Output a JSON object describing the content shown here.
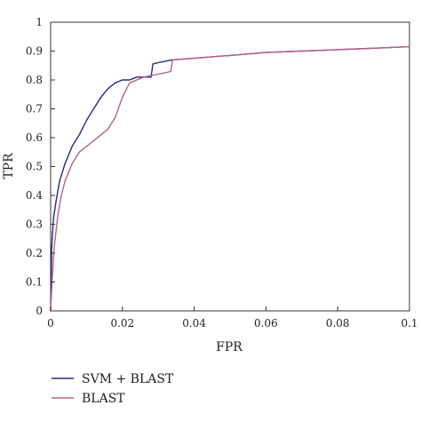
{
  "chart_data": {
    "type": "line",
    "xlabel": "FPR",
    "ylabel": "TPR",
    "xlim": [
      0,
      0.1
    ],
    "ylim": [
      0,
      1
    ],
    "xticks": [
      "0",
      "0.02",
      "0.04",
      "0.06",
      "0.08",
      "0.1"
    ],
    "yticks": [
      "0",
      "0.1",
      "0.2",
      "0.3",
      "0.4",
      "0.5",
      "0.6",
      "0.7",
      "0.8",
      "0.9",
      "1"
    ],
    "grid": false,
    "legend_position": "below",
    "series": [
      {
        "name": "SVM + BLAST",
        "color": "#2a2a7a",
        "x": [
          0,
          0.0003,
          0.0008,
          0.0015,
          0.0025,
          0.004,
          0.006,
          0.008,
          0.01,
          0.012,
          0.014,
          0.016,
          0.018,
          0.02,
          0.022,
          0.024,
          0.026,
          0.028,
          0.0285,
          0.03,
          0.032,
          0.034,
          0.04,
          0.05,
          0.06,
          0.07,
          0.08,
          0.09,
          0.1
        ],
        "y": [
          0,
          0.22,
          0.32,
          0.38,
          0.45,
          0.51,
          0.57,
          0.61,
          0.66,
          0.7,
          0.74,
          0.77,
          0.79,
          0.8,
          0.8,
          0.81,
          0.81,
          0.81,
          0.855,
          0.86,
          0.865,
          0.87,
          0.875,
          0.885,
          0.895,
          0.9,
          0.905,
          0.91,
          0.915
        ]
      },
      {
        "name": "BLAST",
        "color": "#b5648a",
        "x": [
          0,
          0.0005,
          0.001,
          0.002,
          0.003,
          0.004,
          0.006,
          0.008,
          0.01,
          0.012,
          0.014,
          0.016,
          0.018,
          0.02,
          0.022,
          0.024,
          0.026,
          0.028,
          0.03,
          0.032,
          0.0335,
          0.034,
          0.04,
          0.05,
          0.06,
          0.07,
          0.08,
          0.09,
          0.1
        ],
        "y": [
          0,
          0.12,
          0.22,
          0.33,
          0.4,
          0.45,
          0.51,
          0.55,
          0.57,
          0.59,
          0.61,
          0.63,
          0.67,
          0.74,
          0.79,
          0.8,
          0.81,
          0.815,
          0.82,
          0.825,
          0.83,
          0.87,
          0.875,
          0.885,
          0.895,
          0.9,
          0.905,
          0.91,
          0.915
        ]
      }
    ]
  }
}
